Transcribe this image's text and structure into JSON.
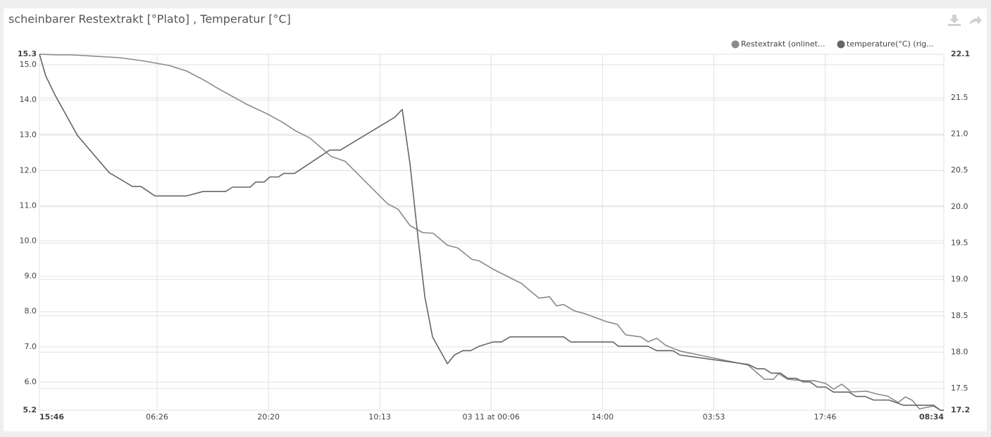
{
  "chart_data": {
    "type": "line",
    "title": "scheinbarer Restextrakt [°Plato] , Temperatur [°C]",
    "xlim": [
      0,
      112.8
    ],
    "xticks": [
      {
        "value": 0,
        "label": "15:46"
      },
      {
        "value": 14.67,
        "label": "06:26"
      },
      {
        "value": 28.57,
        "label": "20:20"
      },
      {
        "value": 42.45,
        "label": "10:13"
      },
      {
        "value": 56.33,
        "label": "03 11 at 00:06"
      },
      {
        "value": 70.23,
        "label": "14:00"
      },
      {
        "value": 84.12,
        "label": "03:53"
      },
      {
        "value": 98.0,
        "label": "17:46"
      },
      {
        "value": 112.8,
        "label": "08:34"
      }
    ],
    "ylim": [
      5.2,
      15.3
    ],
    "yticks": [
      5.2,
      {
        "value": 6,
        "label": "6.0"
      },
      {
        "value": 7,
        "label": "7.0"
      },
      {
        "value": 8,
        "label": "8.0"
      },
      {
        "value": 9,
        "label": "9.0"
      },
      {
        "value": 10,
        "label": "10.0"
      },
      {
        "value": 11,
        "label": "11.0"
      },
      {
        "value": 12,
        "label": "12.0"
      },
      {
        "value": 13,
        "label": "13.0"
      },
      {
        "value": 14,
        "label": "14.0"
      },
      {
        "value": 15,
        "label": "15.0"
      },
      15.3
    ],
    "y2lim": [
      17.2,
      22.1
    ],
    "y2ticks": [
      17.2,
      17.5,
      {
        "value": 18,
        "label": "18.0"
      },
      18.5,
      {
        "value": 19,
        "label": "19.0"
      },
      19.5,
      {
        "value": 20,
        "label": "20.0"
      },
      20.5,
      {
        "value": 21,
        "label": "21.0"
      },
      21.5,
      22.1
    ],
    "grid": true,
    "legend": "top-right",
    "series": [
      {
        "name": "Restextrakt (onlinet...",
        "color": "#8a8a8a",
        "x": [
          0,
          2.1,
          3.87,
          5.62,
          10.0,
          12.65,
          16.17,
          18.37,
          20.56,
          22.32,
          25.83,
          28.47,
          30.23,
          31.99,
          33.74,
          36.38,
          38.13,
          40.33,
          43.41,
          44.73,
          46.22,
          47.8,
          49.12,
          50.88,
          52.2,
          53.95,
          54.83,
          56.59,
          58.35,
          60.1,
          62.3,
          63.62,
          64.5,
          65.38,
          66.7,
          68.01,
          70.65,
          72.06,
          73.11,
          75.04,
          75.92,
          76.98,
          78.12,
          79.88,
          88.4,
          90.42,
          91.56,
          92.18,
          93.32,
          95.26,
          96.57,
          98.07,
          99.03,
          100.09,
          101.23,
          103.16,
          104.48,
          105.8,
          107.12,
          108.0,
          108.88,
          109.75,
          111.51,
          112.39,
          112.8
        ],
        "values": [
          15.3,
          15.28,
          15.28,
          15.26,
          15.2,
          15.12,
          14.98,
          14.82,
          14.56,
          14.32,
          13.88,
          13.6,
          13.38,
          13.12,
          12.92,
          12.4,
          12.26,
          11.76,
          11.06,
          10.9,
          10.44,
          10.24,
          10.22,
          9.88,
          9.8,
          9.48,
          9.44,
          9.2,
          9.0,
          8.8,
          8.38,
          8.42,
          8.16,
          8.2,
          8.02,
          7.94,
          7.72,
          7.64,
          7.34,
          7.28,
          7.14,
          7.24,
          7.04,
          6.88,
          6.48,
          6.08,
          6.08,
          6.24,
          6.08,
          6.04,
          6.04,
          5.96,
          5.8,
          5.94,
          5.72,
          5.74,
          5.66,
          5.6,
          5.42,
          5.58,
          5.48,
          5.24,
          5.32,
          5.2,
          5.2
        ]
      },
      {
        "name": "temperature(°C) (rig...",
        "color": "#666666",
        "axis": "y2",
        "x": [
          0,
          0.79,
          1.93,
          4.75,
          8.7,
          11.6,
          12.65,
          14.41,
          18.37,
          20.39,
          23.2,
          24.08,
          26.27,
          26.98,
          28.03,
          28.73,
          29.79,
          30.49,
          31.81,
          36.2,
          37.52,
          44.29,
          45.25,
          46.22,
          47.19,
          48.07,
          49.03,
          50.88,
          51.76,
          52.81,
          53.78,
          54.83,
          56.59,
          57.64,
          58.7,
          65.38,
          66.26,
          71.53,
          72.23,
          75.92,
          76.98,
          79.0,
          79.88,
          88.4,
          89.54,
          90.42,
          91.3,
          92.44,
          93.32,
          94.38,
          95.26,
          96.13,
          97.01,
          98.07,
          99.03,
          100.97,
          101.85,
          102.99,
          104.04,
          105.98,
          107.73,
          111.51,
          112.39,
          112.8
        ],
        "values": [
          22.1,
          21.8,
          21.54,
          20.98,
          20.47,
          20.28,
          20.28,
          20.15,
          20.15,
          20.21,
          20.21,
          20.27,
          20.27,
          20.34,
          20.34,
          20.41,
          20.41,
          20.46,
          20.46,
          20.78,
          20.78,
          21.23,
          21.34,
          20.59,
          19.6,
          18.76,
          18.21,
          17.84,
          17.96,
          18.02,
          18.02,
          18.08,
          18.14,
          18.14,
          18.21,
          18.21,
          18.14,
          18.14,
          18.08,
          18.08,
          18.02,
          18.02,
          17.96,
          17.83,
          17.77,
          17.77,
          17.71,
          17.71,
          17.64,
          17.64,
          17.59,
          17.59,
          17.52,
          17.52,
          17.45,
          17.45,
          17.39,
          17.39,
          17.34,
          17.34,
          17.27,
          17.27,
          17.2,
          17.2
        ]
      }
    ]
  }
}
